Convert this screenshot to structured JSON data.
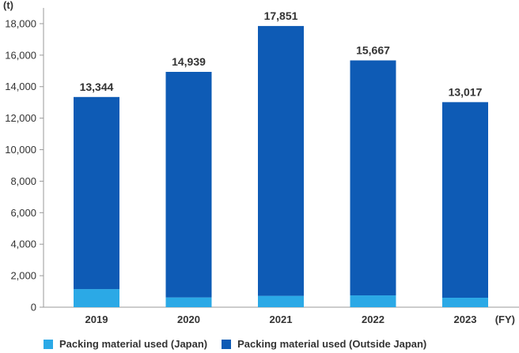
{
  "chart_data": {
    "type": "bar",
    "stacked": true,
    "categories": [
      "2019",
      "2020",
      "2021",
      "2022",
      "2023"
    ],
    "series": [
      {
        "name": "Packing material used (Japan)",
        "values": [
          1150,
          620,
          720,
          750,
          600
        ],
        "color": "#2BA9E6"
      },
      {
        "name": "Packing material used (Outside Japan)",
        "values": [
          12194,
          14319,
          17131,
          14917,
          12417
        ],
        "color": "#0E5BB5"
      }
    ],
    "totals": [
      "13,344",
      "14,939",
      "17,851",
      "15,667",
      "13,017"
    ],
    "yunit": "(t)",
    "xunit": "(FY)",
    "ylim": [
      0,
      19000
    ],
    "yticks": [
      "0",
      "2,000",
      "4,000",
      "6,000",
      "8,000",
      "10,000",
      "12,000",
      "14,000",
      "16,000",
      "18,000"
    ],
    "ytick_values": [
      0,
      2000,
      4000,
      6000,
      8000,
      10000,
      12000,
      14000,
      16000,
      18000
    ],
    "grid": false,
    "legend_position": "bottom"
  }
}
